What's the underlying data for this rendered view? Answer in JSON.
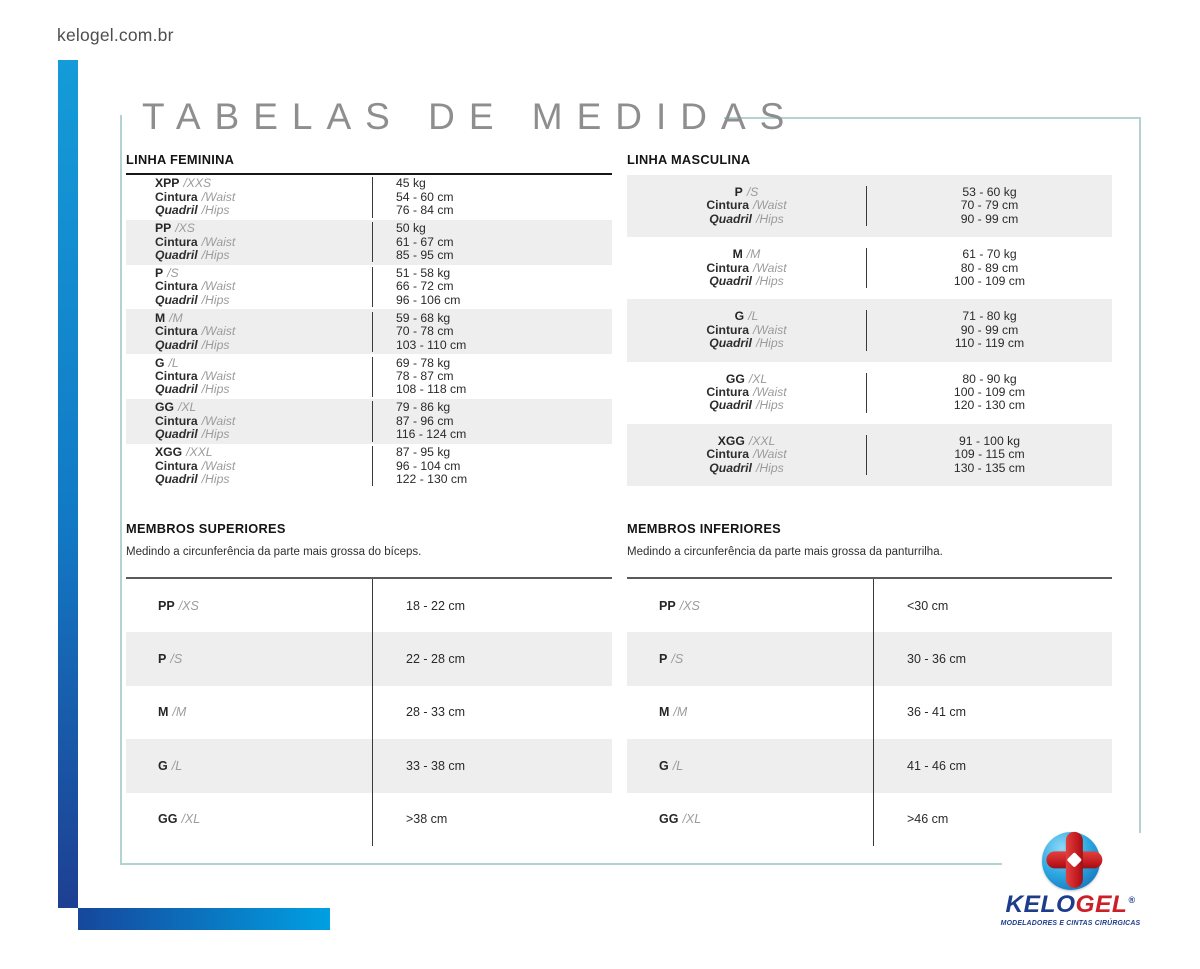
{
  "page": {
    "site_url": "kelogel.com.br",
    "title": "TABELAS DE MEDIDAS"
  },
  "labels": {
    "cintura": "Cintura",
    "waist": "/Waist",
    "quadril": "Quadril",
    "hips": "/Hips"
  },
  "linha_feminina": {
    "title": "LINHA FEMININA",
    "rows": [
      {
        "size": "XPP",
        "size_en": "/XXS",
        "weight": "45 kg",
        "waist": "54 - 60 cm",
        "hips": "76 - 84 cm"
      },
      {
        "size": "PP",
        "size_en": "/XS",
        "weight": "50 kg",
        "waist": "61 - 67 cm",
        "hips": "85 - 95 cm"
      },
      {
        "size": "P",
        "size_en": "/S",
        "weight": "51 - 58 kg",
        "waist": "66 - 72 cm",
        "hips": "96 - 106 cm"
      },
      {
        "size": "M",
        "size_en": "/M",
        "weight": "59 - 68 kg",
        "waist": "70 - 78 cm",
        "hips": "103 - 110 cm"
      },
      {
        "size": "G",
        "size_en": "/L",
        "weight": "69 - 78 kg",
        "waist": "78 - 87 cm",
        "hips": "108 - 118 cm"
      },
      {
        "size": "GG",
        "size_en": "/XL",
        "weight": "79 - 86 kg",
        "waist": "87 - 96 cm",
        "hips": "116 - 124 cm"
      },
      {
        "size": "XGG",
        "size_en": "/XXL",
        "weight": "87 - 95 kg",
        "waist": "96 - 104 cm",
        "hips": "122 - 130 cm"
      }
    ]
  },
  "linha_masculina": {
    "title": "LINHA MASCULINA",
    "rows": [
      {
        "size": "P",
        "size_en": "/S",
        "weight": "53 - 60 kg",
        "waist": "70 - 79 cm",
        "hips": "90 - 99 cm"
      },
      {
        "size": "M",
        "size_en": "/M",
        "weight": "61 - 70 kg",
        "waist": "80 - 89 cm",
        "hips": "100 - 109 cm"
      },
      {
        "size": "G",
        "size_en": "/L",
        "weight": "71 - 80 kg",
        "waist": "90 - 99 cm",
        "hips": "110 - 119 cm"
      },
      {
        "size": "GG",
        "size_en": "/XL",
        "weight": "80 - 90 kg",
        "waist": "100 - 109 cm",
        "hips": "120 - 130 cm"
      },
      {
        "size": "XGG",
        "size_en": "/XXL",
        "weight": "91 - 100 kg",
        "waist": "109 - 115 cm",
        "hips": "130 - 135 cm"
      }
    ]
  },
  "membros_superiores": {
    "title": "MEMBROS SUPERIORES",
    "description": "Medindo a circunferência da parte mais grossa do bíceps.",
    "rows": [
      {
        "size": "PP",
        "size_en": "/XS",
        "value": "18 - 22 cm"
      },
      {
        "size": "P",
        "size_en": "/S",
        "value": "22 - 28 cm"
      },
      {
        "size": "M",
        "size_en": "/M",
        "value": "28 - 33 cm"
      },
      {
        "size": "G",
        "size_en": "/L",
        "value": "33 - 38 cm"
      },
      {
        "size": "GG",
        "size_en": "/XL",
        "value": ">38 cm"
      }
    ]
  },
  "membros_inferiores": {
    "title": "MEMBROS INFERIORES",
    "description": "Medindo a circunferência da parte mais grossa da panturrilha.",
    "rows": [
      {
        "size": "PP",
        "size_en": "/XS",
        "value": "<30 cm"
      },
      {
        "size": "P",
        "size_en": "/S",
        "value": "30 - 36 cm"
      },
      {
        "size": "M",
        "size_en": "/M",
        "value": "36 - 41 cm"
      },
      {
        "size": "G",
        "size_en": "/L",
        "value": "41 - 46 cm"
      },
      {
        "size": "GG",
        "size_en": "/XL",
        "value": ">46 cm"
      }
    ]
  },
  "logo": {
    "brand_part1": "KELO",
    "brand_part2": "GEL",
    "reg": "®",
    "tagline": "MODELADORES E CINTAS CIRÚRGICAS"
  },
  "colors": {
    "accent_blue_light": "#149bd8",
    "accent_blue_dark": "#1e3f92",
    "accent_cyan": "#00a0e2",
    "brand_navy": "#1d3c8b",
    "brand_red": "#cb2028",
    "row_shade": "#eeeeee",
    "frame_border": "#b4d2d2",
    "title_gray": "#8e8e8e"
  }
}
